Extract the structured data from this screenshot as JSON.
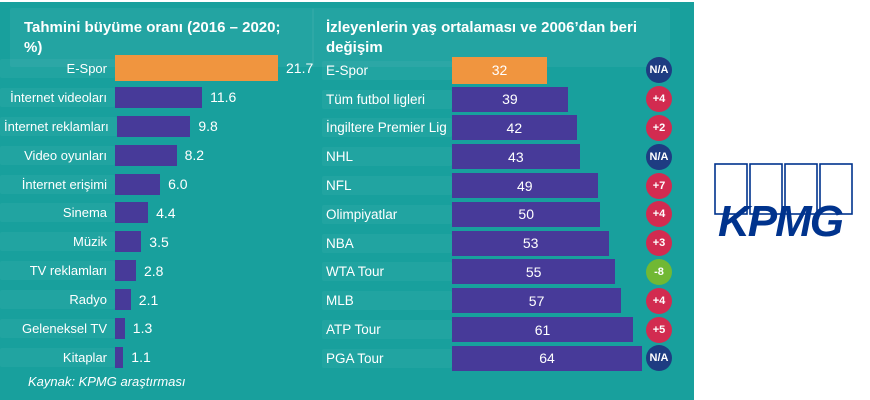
{
  "panel": {
    "background": "#18A09D"
  },
  "colors": {
    "teal_background": "#18A09D",
    "bar_purple": "#473A99",
    "bar_highlight_orange": "#F0953F",
    "badge_na_navy": "#1E3C82",
    "badge_increase_crimson": "#D22B50",
    "badge_decrease_green": "#71B834",
    "text_white": "#FFFFFF",
    "kpmg_blue": "#00338D"
  },
  "footer": {
    "source": "Kaynak: KPMG araştırması"
  },
  "logo": {
    "text": "KPMG"
  },
  "chart_data": [
    {
      "type": "bar",
      "orientation": "horizontal",
      "title": "Tahmini büyüme oranı (2016 – 2020; %)",
      "categories": [
        "E-Spor",
        "İnternet videoları",
        "İnternet reklamları",
        "Video oyunları",
        "İnternet erişimi",
        "Sinema",
        "Müzik",
        "TV reklamları",
        "Radyo",
        "Geleneksel TV",
        "Kitaplar"
      ],
      "values": [
        21.7,
        11.6,
        9.8,
        8.2,
        6.0,
        4.4,
        3.5,
        2.8,
        2.1,
        1.3,
        1.1
      ],
      "value_labels": [
        "21.7",
        "11.6",
        "9.8",
        "8.2",
        "6.0",
        "4.4",
        "3.5",
        "2.8",
        "2.1",
        "1.3",
        "1.1"
      ],
      "highlight_index": 0,
      "highlight_color": "#F0953F",
      "bar_color": "#473A99",
      "xlim": [
        0,
        21.7
      ],
      "grid": false,
      "legend": false,
      "value_label_position": "right-of-bar"
    },
    {
      "type": "bar",
      "orientation": "horizontal",
      "title": "İzleyenlerin yaş ortalaması ve 2006’dan beri değişim",
      "title_lines": [
        "İzleyenlerin yaş ortalaması ve 2006’dan beri",
        "değişim"
      ],
      "categories": [
        "E-Spor",
        "Tüm futbol ligleri",
        "İngiltere Premier Lig",
        "NHL",
        "NFL",
        "Olimpiyatlar",
        "NBA",
        "WTA Tour",
        "MLB",
        "ATP Tour",
        "PGA Tour"
      ],
      "values": [
        32,
        39,
        42,
        43,
        49,
        50,
        53,
        55,
        57,
        61,
        64
      ],
      "value_labels": [
        "32",
        "39",
        "42",
        "43",
        "49",
        "50",
        "53",
        "55",
        "57",
        "61",
        "64"
      ],
      "badges": [
        "N/A",
        "+4",
        "+2",
        "N/A",
        "+7",
        "+4",
        "+3",
        "-8",
        "+4",
        "+5",
        "N/A"
      ],
      "highlight_index": 0,
      "highlight_color": "#F0953F",
      "bar_color": "#473A99",
      "xlim": [
        0,
        64
      ],
      "grid": false,
      "legend": false,
      "value_label_position": "inside-bar"
    }
  ]
}
